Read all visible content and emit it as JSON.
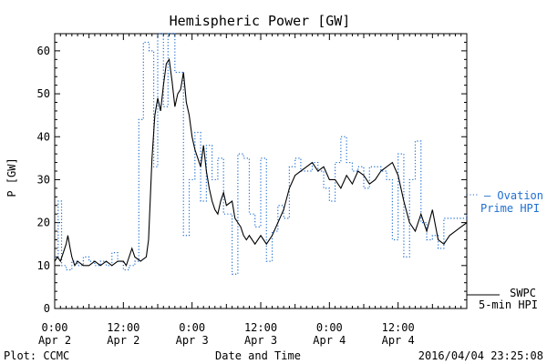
{
  "chart_data": {
    "type": "line",
    "title": "Hemispheric Power [GW]",
    "ylabel": "P [GW]",
    "xlabel": "Date and Time",
    "ylim": [
      0,
      64
    ],
    "xlim": [
      0,
      72
    ],
    "yticks": [
      0,
      10,
      20,
      30,
      40,
      50,
      60
    ],
    "xticks": [
      {
        "x": 0,
        "line1": "0:00",
        "line2": "Apr 2"
      },
      {
        "x": 12,
        "line1": "12:00",
        "line2": "Apr 2"
      },
      {
        "x": 24,
        "line1": "0:00",
        "line2": "Apr 3"
      },
      {
        "x": 36,
        "line1": "12:00",
        "line2": "Apr 3"
      },
      {
        "x": 48,
        "line1": "0:00",
        "line2": "Apr 4"
      },
      {
        "x": 60,
        "line1": "12:00",
        "line2": "Apr 4"
      }
    ],
    "series": [
      {
        "name_lines": [
          "— Ovation",
          "Prime HPI"
        ],
        "style": "dotted-step",
        "color": "#1f6fd1",
        "points": [
          [
            0,
            12
          ],
          [
            0.6,
            25
          ],
          [
            1.2,
            10
          ],
          [
            2,
            9
          ],
          [
            3,
            11
          ],
          [
            4,
            10
          ],
          [
            5,
            12
          ],
          [
            6,
            11
          ],
          [
            7,
            10
          ],
          [
            8,
            11
          ],
          [
            9,
            10
          ],
          [
            10,
            13
          ],
          [
            11,
            11
          ],
          [
            12,
            9
          ],
          [
            13,
            10
          ],
          [
            14,
            11
          ],
          [
            14.7,
            44
          ],
          [
            15.5,
            62
          ],
          [
            16.5,
            60
          ],
          [
            17.3,
            33
          ],
          [
            18,
            64
          ],
          [
            19,
            47
          ],
          [
            19.8,
            64
          ],
          [
            21,
            55
          ],
          [
            22.5,
            17
          ],
          [
            23.5,
            30
          ],
          [
            24.5,
            41
          ],
          [
            25.5,
            25
          ],
          [
            26.5,
            38
          ],
          [
            27.5,
            30
          ],
          [
            28.5,
            35
          ],
          [
            29.5,
            22
          ],
          [
            31,
            8
          ],
          [
            32,
            36
          ],
          [
            33,
            35
          ],
          [
            34,
            22
          ],
          [
            35,
            19
          ],
          [
            36,
            35
          ],
          [
            37,
            11
          ],
          [
            38,
            18
          ],
          [
            39,
            24
          ],
          [
            40,
            21
          ],
          [
            41,
            33
          ],
          [
            42,
            35
          ],
          [
            43,
            32
          ],
          [
            44,
            32
          ],
          [
            45,
            34
          ],
          [
            46,
            32
          ],
          [
            47,
            28
          ],
          [
            48,
            25
          ],
          [
            49,
            34
          ],
          [
            50,
            40
          ],
          [
            51,
            34
          ],
          [
            52,
            32
          ],
          [
            53,
            33
          ],
          [
            54,
            28
          ],
          [
            55,
            33
          ],
          [
            56,
            33
          ],
          [
            57,
            32
          ],
          [
            58,
            30
          ],
          [
            59,
            16
          ],
          [
            60,
            36
          ],
          [
            61,
            12
          ],
          [
            62,
            30
          ],
          [
            63,
            39
          ],
          [
            64,
            20
          ],
          [
            65,
            16
          ],
          [
            66,
            17
          ],
          [
            67,
            14
          ],
          [
            68,
            21
          ],
          [
            69,
            21
          ],
          [
            70,
            21
          ],
          [
            71,
            21
          ],
          [
            72,
            22
          ]
        ]
      },
      {
        "name_lines": [
          "SWPC",
          "5-min HPI"
        ],
        "style": "solid",
        "color": "#000000",
        "points": [
          [
            0,
            11
          ],
          [
            0.5,
            12
          ],
          [
            1,
            11
          ],
          [
            1.5,
            13
          ],
          [
            2,
            15
          ],
          [
            2.3,
            17
          ],
          [
            2.7,
            14
          ],
          [
            3,
            12
          ],
          [
            3.5,
            10
          ],
          [
            4,
            11
          ],
          [
            5,
            10
          ],
          [
            6,
            10
          ],
          [
            7,
            11
          ],
          [
            8,
            10
          ],
          [
            9,
            11
          ],
          [
            10,
            10
          ],
          [
            11,
            11
          ],
          [
            12,
            11
          ],
          [
            12.5,
            10
          ],
          [
            13,
            12
          ],
          [
            13.5,
            14
          ],
          [
            14,
            12
          ],
          [
            15,
            11
          ],
          [
            16,
            12
          ],
          [
            16.4,
            16
          ],
          [
            17,
            35
          ],
          [
            17.5,
            45
          ],
          [
            18,
            49
          ],
          [
            18.5,
            46
          ],
          [
            19,
            52
          ],
          [
            19.5,
            57
          ],
          [
            20,
            58
          ],
          [
            20.5,
            53
          ],
          [
            21,
            47
          ],
          [
            21.5,
            50
          ],
          [
            22,
            51
          ],
          [
            22.5,
            55
          ],
          [
            23,
            48
          ],
          [
            23.5,
            45
          ],
          [
            24,
            40
          ],
          [
            24.5,
            37
          ],
          [
            25,
            35
          ],
          [
            25.5,
            33
          ],
          [
            26,
            38
          ],
          [
            26.5,
            32
          ],
          [
            27,
            28
          ],
          [
            27.5,
            25
          ],
          [
            28,
            23
          ],
          [
            28.5,
            22
          ],
          [
            29,
            25
          ],
          [
            29.5,
            27
          ],
          [
            30,
            24
          ],
          [
            31,
            25
          ],
          [
            31.5,
            21
          ],
          [
            32,
            20
          ],
          [
            32.5,
            19
          ],
          [
            33,
            17
          ],
          [
            33.5,
            16
          ],
          [
            34,
            17
          ],
          [
            35,
            15
          ],
          [
            36,
            17
          ],
          [
            37,
            15
          ],
          [
            38,
            17
          ],
          [
            39,
            20
          ],
          [
            40,
            23
          ],
          [
            41,
            28
          ],
          [
            42,
            31
          ],
          [
            43,
            32
          ],
          [
            44,
            33
          ],
          [
            45,
            34
          ],
          [
            46,
            32
          ],
          [
            47,
            33
          ],
          [
            48,
            30
          ],
          [
            49,
            30
          ],
          [
            50,
            28
          ],
          [
            51,
            31
          ],
          [
            52,
            29
          ],
          [
            53,
            32
          ],
          [
            54,
            31
          ],
          [
            55,
            29
          ],
          [
            56,
            30
          ],
          [
            57,
            32
          ],
          [
            58,
            33
          ],
          [
            59,
            34
          ],
          [
            60,
            31
          ],
          [
            61,
            25
          ],
          [
            62,
            20
          ],
          [
            63,
            18
          ],
          [
            64,
            22
          ],
          [
            65,
            18
          ],
          [
            66,
            23
          ],
          [
            67,
            16
          ],
          [
            68,
            15
          ],
          [
            69,
            17
          ],
          [
            70,
            18
          ],
          [
            71,
            19
          ],
          [
            72,
            20
          ]
        ]
      }
    ]
  },
  "footer": {
    "plot_credit": "Plot: CCMC",
    "timestamp": "2016/04/04 23:25:08"
  }
}
